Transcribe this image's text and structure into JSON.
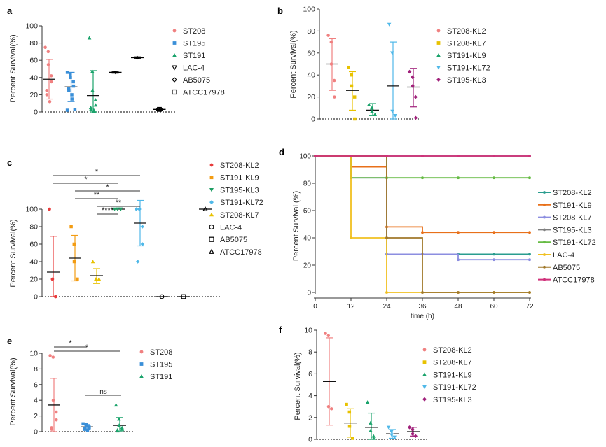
{
  "colors": {
    "salmon": "#f08080",
    "blue": "#3a8fd8",
    "green": "#1aa36b",
    "yellow": "#e8c200",
    "skyblue": "#4fb8e8",
    "purple": "#a0207a",
    "red": "#e83c3c",
    "orange": "#f39c12",
    "darkgreen": "#1e9e64",
    "teal": "#2a9d8f",
    "kmorange": "#e8701a",
    "lavender": "#8c8ee0",
    "gray": "#808080",
    "lightgreen": "#66bb44",
    "gold": "#f0c020",
    "brown": "#a0782a",
    "magenta": "#d0307a"
  },
  "chart_data": [
    {
      "panel": "a",
      "type": "scatter",
      "ylabel": "Percent Survival(%)",
      "ylim": [
        0,
        100
      ],
      "yticks": [
        0,
        20,
        40,
        60,
        80,
        100
      ],
      "series": [
        {
          "name": "ST208",
          "color": "salmon",
          "marker": "circle",
          "mean": 38,
          "sd_low": 15,
          "sd_high": 61,
          "points": [
            75,
            70,
            55,
            42,
            35,
            25,
            20,
            12
          ]
        },
        {
          "name": "ST195",
          "color": "blue",
          "marker": "square",
          "mean": 29,
          "sd_low": 12,
          "sd_high": 46,
          "points": [
            46,
            44,
            40,
            35,
            30,
            27,
            25,
            20,
            15,
            3,
            2
          ]
        },
        {
          "name": "ST191",
          "color": "green",
          "marker": "triangle",
          "mean": 19,
          "sd_low": 0,
          "sd_high": 48,
          "points": [
            86,
            47,
            25,
            14,
            8,
            5,
            3,
            2,
            1
          ]
        },
        {
          "name": "LAC-4",
          "color": "black",
          "marker": "triangle-down",
          "mean": 46,
          "sd_low": 45,
          "sd_high": 47,
          "points": [
            46
          ]
        },
        {
          "name": "AB5075",
          "color": "black",
          "marker": "diamond",
          "mean": 63,
          "sd_low": 62,
          "sd_high": 64,
          "points": [
            63
          ]
        },
        {
          "name": "ATCC17978",
          "color": "black",
          "marker": "open-square",
          "mean": 3,
          "sd_low": 2,
          "sd_high": 4,
          "points": [
            3
          ]
        }
      ]
    },
    {
      "panel": "b",
      "type": "scatter",
      "ylabel": "Percent Survival(%)",
      "ylim": [
        0,
        100
      ],
      "yticks": [
        0,
        20,
        40,
        60,
        80,
        100
      ],
      "series": [
        {
          "name": "ST208-KL2",
          "color": "salmon",
          "marker": "circle",
          "mean": 50,
          "sd_low": 26,
          "sd_high": 73,
          "points": [
            76,
            70,
            50,
            35,
            20
          ]
        },
        {
          "name": "ST208-KL7",
          "color": "yellow",
          "marker": "square",
          "mean": 26,
          "sd_low": 8,
          "sd_high": 43,
          "points": [
            47,
            40,
            30,
            20,
            0
          ]
        },
        {
          "name": "ST191-KL9",
          "color": "green",
          "marker": "triangle",
          "mean": 8,
          "sd_low": 3,
          "sd_high": 14,
          "points": [
            13,
            10,
            7,
            4
          ]
        },
        {
          "name": "ST191-KL72",
          "color": "skyblue",
          "marker": "triangle-down",
          "mean": 30,
          "sd_low": 0,
          "sd_high": 70,
          "points": [
            86,
            60,
            7,
            3
          ]
        },
        {
          "name": "ST195-KL3",
          "color": "purple",
          "marker": "diamond",
          "mean": 29,
          "sd_low": 11,
          "sd_high": 46,
          "points": [
            43,
            38,
            30,
            20,
            1
          ]
        }
      ]
    },
    {
      "panel": "c",
      "type": "scatter",
      "ylabel": "Percent Survival(%)",
      "ylim": [
        0,
        100
      ],
      "yticks": [
        0,
        20,
        40,
        60,
        80,
        100
      ],
      "series": [
        {
          "name": "ST208-KL2",
          "color": "red",
          "marker": "circle",
          "mean": 28,
          "sd_low": 0,
          "sd_high": 69,
          "points": [
            100,
            20,
            20,
            0,
            0
          ]
        },
        {
          "name": "ST191-KL9",
          "color": "orange",
          "marker": "square",
          "mean": 44,
          "sd_low": 18,
          "sd_high": 70,
          "points": [
            80,
            60,
            40,
            20,
            20
          ]
        },
        {
          "name": "ST195-KL3",
          "color": "darkgreen",
          "marker": "triangle-down",
          "mean": 100,
          "sd_low": 100,
          "sd_high": 100,
          "points": [
            100,
            100,
            100,
            100,
            100
          ]
        },
        {
          "name": "ST191-KL72",
          "color": "skyblue",
          "marker": "diamond",
          "mean": 84,
          "sd_low": 58,
          "sd_high": 110,
          "points": [
            100,
            100,
            100,
            80,
            60,
            40
          ]
        },
        {
          "name": "ST208-KL7",
          "color": "yellow",
          "marker": "triangle",
          "mean": 24,
          "sd_low": 15,
          "sd_high": 32,
          "points": [
            40,
            20,
            20,
            20,
            20
          ]
        },
        {
          "name": "LAC-4",
          "color": "black",
          "marker": "open-circle",
          "mean": 0,
          "sd_low": 0,
          "sd_high": 0,
          "points": [
            0
          ]
        },
        {
          "name": "AB5075",
          "color": "black",
          "marker": "open-square",
          "mean": 0,
          "sd_low": 0,
          "sd_high": 0,
          "points": [
            0
          ]
        },
        {
          "name": "ATCC17978",
          "color": "black",
          "marker": "open-triangle",
          "mean": 100,
          "sd_low": 100,
          "sd_high": 100,
          "points": [
            100
          ]
        }
      ],
      "positions": [
        0,
        1,
        3,
        4,
        2,
        5,
        6,
        7
      ],
      "significance": [
        {
          "label": "*",
          "from": 0,
          "to": 4
        },
        {
          "label": "*",
          "from": 0,
          "to": 3
        },
        {
          "label": "*",
          "from": 1,
          "to": 4
        },
        {
          "label": "**",
          "from": 1,
          "to": 3
        },
        {
          "label": "**",
          "from": 2,
          "to": 4
        },
        {
          "label": "****",
          "from": 2,
          "to": 3
        }
      ]
    },
    {
      "panel": "d",
      "type": "line",
      "xlabel": "time (h)",
      "ylabel": "Percent Survival (%)",
      "xlim": [
        0,
        72
      ],
      "ylim": [
        0,
        100
      ],
      "xticks": [
        0,
        12,
        24,
        36,
        48,
        60,
        72
      ],
      "yticks": [
        0,
        20,
        40,
        60,
        80,
        100
      ],
      "series": [
        {
          "name": "ST208-KL2",
          "color": "teal",
          "steps": [
            [
              0,
              100
            ],
            [
              24,
              28
            ],
            [
              72,
              28
            ]
          ]
        },
        {
          "name": "ST191-KL9",
          "color": "kmorange",
          "steps": [
            [
              0,
              100
            ],
            [
              12,
              92
            ],
            [
              24,
              48
            ],
            [
              36,
              44
            ],
            [
              72,
              44
            ]
          ]
        },
        {
          "name": "ST208-KL7",
          "color": "lavender",
          "steps": [
            [
              0,
              100
            ],
            [
              12,
              84
            ],
            [
              24,
              28
            ],
            [
              48,
              24
            ],
            [
              72,
              24
            ]
          ]
        },
        {
          "name": "ST195-KL3",
          "color": "gray",
          "steps": [
            [
              0,
              100
            ],
            [
              72,
              100
            ]
          ]
        },
        {
          "name": "ST191-KL72",
          "color": "lightgreen",
          "steps": [
            [
              0,
              100
            ],
            [
              12,
              84
            ],
            [
              72,
              84
            ]
          ]
        },
        {
          "name": "LAC-4",
          "color": "gold",
          "steps": [
            [
              0,
              100
            ],
            [
              12,
              40
            ],
            [
              24,
              0
            ],
            [
              72,
              0
            ]
          ]
        },
        {
          "name": "AB5075",
          "color": "brown",
          "steps": [
            [
              0,
              100
            ],
            [
              24,
              40
            ],
            [
              36,
              0
            ],
            [
              72,
              0
            ]
          ]
        },
        {
          "name": "ATCC17978",
          "color": "magenta",
          "steps": [
            [
              0,
              100
            ],
            [
              72,
              100
            ]
          ]
        }
      ]
    },
    {
      "panel": "e",
      "type": "scatter",
      "ylabel": "Percent Survival(%)",
      "ylim": [
        0,
        10
      ],
      "yticks": [
        0,
        2,
        4,
        6,
        8,
        10
      ],
      "series": [
        {
          "name": "ST208",
          "color": "salmon",
          "marker": "circle",
          "mean": 3.4,
          "sd_low": 0,
          "sd_high": 6.8,
          "points": [
            9.7,
            9.5,
            4,
            2.5,
            1.5,
            0.5,
            0.3
          ]
        },
        {
          "name": "ST195",
          "color": "blue",
          "marker": "square",
          "mean": 0.6,
          "sd_low": 0.3,
          "sd_high": 0.9,
          "points": [
            1,
            0.9,
            0.7,
            0.6,
            0.5,
            0.4,
            0.3,
            0.2
          ]
        },
        {
          "name": "ST191",
          "color": "green",
          "marker": "triangle",
          "mean": 0.8,
          "sd_low": 0,
          "sd_high": 1.8,
          "points": [
            3.4,
            1.6,
            0.8,
            0.5,
            0.3,
            0.2,
            0.1
          ]
        }
      ],
      "significance": [
        {
          "label": "*",
          "from": 0,
          "to": 1
        },
        {
          "label": "*",
          "from": 0,
          "to": 2
        },
        {
          "label": "ns",
          "from": 1,
          "to": 2
        }
      ]
    },
    {
      "panel": "f",
      "type": "scatter",
      "ylabel": "Percent Survival(%)",
      "ylim": [
        0,
        10
      ],
      "yticks": [
        0,
        2,
        4,
        6,
        8,
        10
      ],
      "series": [
        {
          "name": "ST208-KL2",
          "color": "salmon",
          "marker": "circle",
          "mean": 5.3,
          "sd_low": 1.3,
          "sd_high": 9.3,
          "points": [
            9.7,
            9.5,
            3,
            2.8
          ]
        },
        {
          "name": "ST208-KL7",
          "color": "yellow",
          "marker": "square",
          "mean": 1.5,
          "sd_low": 0.2,
          "sd_high": 2.8,
          "points": [
            3.2,
            2.5,
            1.2,
            0.1
          ]
        },
        {
          "name": "ST191-KL9",
          "color": "green",
          "marker": "triangle",
          "mean": 1.1,
          "sd_low": 0,
          "sd_high": 2.4,
          "points": [
            3.4,
            1.5,
            0.8,
            0.3,
            0.1
          ]
        },
        {
          "name": "ST191-KL72",
          "color": "skyblue",
          "marker": "triangle-down",
          "mean": 0.5,
          "sd_low": 0.1,
          "sd_high": 0.9,
          "points": [
            1.1,
            0.7,
            0.4,
            0.2
          ]
        },
        {
          "name": "ST195-KL3",
          "color": "purple",
          "marker": "diamond",
          "mean": 0.7,
          "sd_low": 0.3,
          "sd_high": 1.1,
          "points": [
            1.1,
            0.9,
            0.5,
            0.3
          ]
        }
      ]
    }
  ]
}
